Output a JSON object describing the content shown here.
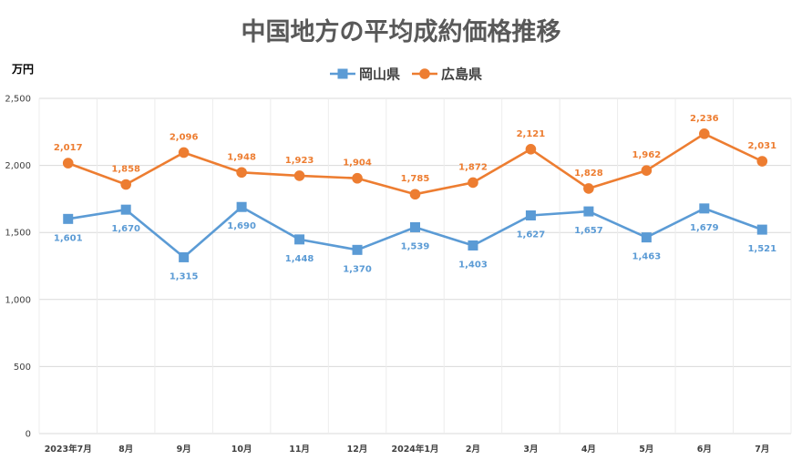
{
  "chart_data": {
    "type": "line",
    "title": "中国地方の平均成約価格推移",
    "ylabel": "万円",
    "xlabel": "",
    "ylim": [
      0,
      2500
    ],
    "yticks": [
      0,
      500,
      1000,
      1500,
      2000,
      2500
    ],
    "ytick_labels": [
      "0",
      "500",
      "1,000",
      "1,500",
      "2,000",
      "2,500"
    ],
    "grid": true,
    "legend": "top-center",
    "categories": [
      "2023年7月",
      "8月",
      "9月",
      "10月",
      "11月",
      "12月",
      "2024年1月",
      "2月",
      "3月",
      "4月",
      "5月",
      "6月",
      "7月"
    ],
    "series": [
      {
        "name": "岡山県",
        "color": "#5b9bd5",
        "label_color": "#5b9bd5",
        "marker": "square",
        "label_position": "below",
        "values": [
          1601,
          1670,
          1315,
          1690,
          1448,
          1370,
          1539,
          1403,
          1627,
          1657,
          1463,
          1679,
          1521
        ],
        "labels": [
          "1,601",
          "1,670",
          "1,315",
          "1,690",
          "1,448",
          "1,370",
          "1,539",
          "1,403",
          "1,627",
          "1,657",
          "1,463",
          "1,679",
          "1,521"
        ]
      },
      {
        "name": "広島県",
        "color": "#ed7d31",
        "label_color": "#ed7d31",
        "marker": "circle",
        "label_position": "above",
        "values": [
          2017,
          1858,
          2096,
          1948,
          1923,
          1904,
          1785,
          1872,
          2121,
          1828,
          1962,
          2236,
          2031
        ],
        "labels": [
          "2,017",
          "1,858",
          "2,096",
          "1,948",
          "1,923",
          "1,904",
          "1,785",
          "1,872",
          "2,121",
          "1,828",
          "1,962",
          "2,236",
          "2,031"
        ]
      }
    ]
  }
}
